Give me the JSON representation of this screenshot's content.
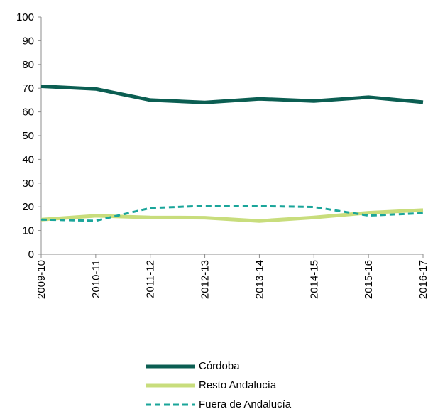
{
  "chart_data": {
    "type": "line",
    "categories": [
      "2009-10",
      "2010-11",
      "2011-12",
      "2012-13",
      "2013-14",
      "2014-15",
      "2015-16",
      "2016-17"
    ],
    "series": [
      {
        "name": "Córdoba",
        "values": [
          70.8,
          69.7,
          65.0,
          64.0,
          65.5,
          64.6,
          66.2,
          64.1
        ],
        "color": "#0b5e52",
        "style": "solid"
      },
      {
        "name": "Resto Andalucía",
        "values": [
          14.6,
          16.2,
          15.5,
          15.4,
          14.0,
          15.5,
          17.5,
          18.6
        ],
        "color": "#c8dd7c",
        "style": "solid"
      },
      {
        "name": "Fuera de Andalucía",
        "values": [
          14.6,
          14.1,
          19.5,
          20.4,
          20.3,
          19.9,
          16.3,
          17.3
        ],
        "color": "#1aa59a",
        "style": "dashed"
      }
    ],
    "y_ticks": [
      "0",
      "10",
      "20",
      "30",
      "40",
      "50",
      "60",
      "70",
      "80",
      "90",
      "100"
    ],
    "ylim": [
      0,
      100
    ],
    "grid": false,
    "legend_position": "bottom-center"
  }
}
